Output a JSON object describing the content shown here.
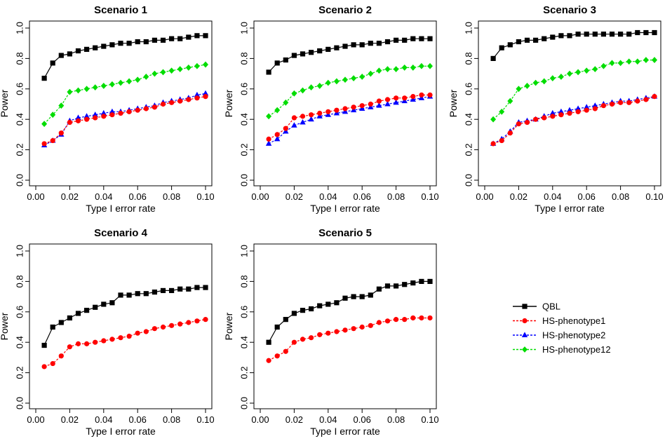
{
  "figure": {
    "xlabel": "Type I error rate",
    "ylabel": "Power",
    "xticks": [
      "0.00",
      "0.02",
      "0.04",
      "0.06",
      "0.08",
      "0.10"
    ],
    "yticks": [
      "0.0",
      "0.2",
      "0.4",
      "0.6",
      "0.8",
      "1.0"
    ]
  },
  "legend": [
    {
      "name": "QBL",
      "color": "#000000",
      "marker": "square"
    },
    {
      "name": "HS-phenotype1",
      "color": "#ff0000",
      "marker": "circle"
    },
    {
      "name": "HS-phenotype2",
      "color": "#0000ff",
      "marker": "triangle"
    },
    {
      "name": "HS-phenotype12",
      "color": "#00dd00",
      "marker": "diamond"
    }
  ],
  "chart_data": [
    {
      "type": "line",
      "title": "Scenario 1",
      "xlabel": "Type I error rate",
      "ylabel": "Power",
      "xlim": [
        0,
        0.1
      ],
      "ylim": [
        0,
        1
      ],
      "x": [
        0.005,
        0.01,
        0.015,
        0.02,
        0.025,
        0.03,
        0.035,
        0.04,
        0.045,
        0.05,
        0.055,
        0.06,
        0.065,
        0.07,
        0.075,
        0.08,
        0.085,
        0.09,
        0.095,
        0.1
      ],
      "series": [
        {
          "name": "QBL",
          "values": [
            0.67,
            0.77,
            0.82,
            0.83,
            0.85,
            0.86,
            0.87,
            0.88,
            0.89,
            0.9,
            0.9,
            0.91,
            0.91,
            0.92,
            0.92,
            0.93,
            0.93,
            0.94,
            0.95,
            0.95
          ]
        },
        {
          "name": "HS-phenotype1",
          "values": [
            0.24,
            0.26,
            0.31,
            0.38,
            0.39,
            0.4,
            0.41,
            0.42,
            0.43,
            0.44,
            0.45,
            0.46,
            0.47,
            0.48,
            0.5,
            0.51,
            0.52,
            0.53,
            0.54,
            0.55
          ]
        },
        {
          "name": "HS-phenotype2",
          "values": [
            0.23,
            0.26,
            0.3,
            0.39,
            0.41,
            0.42,
            0.43,
            0.44,
            0.45,
            0.45,
            0.46,
            0.47,
            0.48,
            0.49,
            0.51,
            0.52,
            0.53,
            0.54,
            0.56,
            0.57
          ]
        },
        {
          "name": "HS-phenotype12",
          "values": [
            0.37,
            0.43,
            0.49,
            0.58,
            0.59,
            0.6,
            0.61,
            0.62,
            0.63,
            0.64,
            0.65,
            0.66,
            0.68,
            0.7,
            0.71,
            0.72,
            0.73,
            0.74,
            0.75,
            0.76
          ]
        }
      ]
    },
    {
      "type": "line",
      "title": "Scenario 2",
      "xlabel": "Type I error rate",
      "ylabel": "Power",
      "xlim": [
        0,
        0.1
      ],
      "ylim": [
        0,
        1
      ],
      "x": [
        0.005,
        0.01,
        0.015,
        0.02,
        0.025,
        0.03,
        0.035,
        0.04,
        0.045,
        0.05,
        0.055,
        0.06,
        0.065,
        0.07,
        0.075,
        0.08,
        0.085,
        0.09,
        0.095,
        0.1
      ],
      "series": [
        {
          "name": "QBL",
          "values": [
            0.71,
            0.77,
            0.79,
            0.82,
            0.83,
            0.84,
            0.85,
            0.86,
            0.87,
            0.88,
            0.89,
            0.89,
            0.9,
            0.9,
            0.91,
            0.92,
            0.92,
            0.93,
            0.93,
            0.93
          ]
        },
        {
          "name": "HS-phenotype1",
          "values": [
            0.27,
            0.3,
            0.34,
            0.41,
            0.42,
            0.43,
            0.44,
            0.45,
            0.46,
            0.47,
            0.48,
            0.49,
            0.5,
            0.52,
            0.53,
            0.54,
            0.54,
            0.55,
            0.56,
            0.56
          ]
        },
        {
          "name": "HS-phenotype2",
          "values": [
            0.24,
            0.27,
            0.32,
            0.36,
            0.38,
            0.4,
            0.42,
            0.43,
            0.44,
            0.45,
            0.46,
            0.47,
            0.48,
            0.49,
            0.5,
            0.51,
            0.52,
            0.53,
            0.54,
            0.55
          ]
        },
        {
          "name": "HS-phenotype12",
          "values": [
            0.42,
            0.46,
            0.51,
            0.57,
            0.59,
            0.61,
            0.62,
            0.64,
            0.65,
            0.66,
            0.67,
            0.68,
            0.7,
            0.72,
            0.73,
            0.73,
            0.74,
            0.74,
            0.75,
            0.75
          ]
        }
      ]
    },
    {
      "type": "line",
      "title": "Scenario 3",
      "xlabel": "Type I error rate",
      "ylabel": "Power",
      "xlim": [
        0,
        0.1
      ],
      "ylim": [
        0,
        1
      ],
      "x": [
        0.005,
        0.01,
        0.015,
        0.02,
        0.025,
        0.03,
        0.035,
        0.04,
        0.045,
        0.05,
        0.055,
        0.06,
        0.065,
        0.07,
        0.075,
        0.08,
        0.085,
        0.09,
        0.095,
        0.1
      ],
      "series": [
        {
          "name": "QBL",
          "values": [
            0.8,
            0.87,
            0.89,
            0.91,
            0.92,
            0.92,
            0.93,
            0.94,
            0.95,
            0.95,
            0.96,
            0.96,
            0.96,
            0.96,
            0.96,
            0.96,
            0.96,
            0.97,
            0.97,
            0.97
          ]
        },
        {
          "name": "HS-phenotype1",
          "values": [
            0.24,
            0.26,
            0.31,
            0.37,
            0.38,
            0.4,
            0.41,
            0.42,
            0.43,
            0.44,
            0.45,
            0.46,
            0.47,
            0.49,
            0.5,
            0.51,
            0.51,
            0.52,
            0.53,
            0.55
          ]
        },
        {
          "name": "HS-phenotype2",
          "values": [
            0.24,
            0.27,
            0.32,
            0.38,
            0.39,
            0.4,
            0.42,
            0.44,
            0.45,
            0.46,
            0.47,
            0.48,
            0.49,
            0.5,
            0.51,
            0.52,
            0.52,
            0.53,
            0.54,
            0.55
          ]
        },
        {
          "name": "HS-phenotype12",
          "values": [
            0.4,
            0.45,
            0.52,
            0.6,
            0.62,
            0.64,
            0.65,
            0.67,
            0.68,
            0.7,
            0.71,
            0.72,
            0.73,
            0.75,
            0.77,
            0.77,
            0.78,
            0.78,
            0.79,
            0.79
          ]
        }
      ]
    },
    {
      "type": "line",
      "title": "Scenario 4",
      "xlabel": "Type I error rate",
      "ylabel": "Power",
      "xlim": [
        0,
        0.1
      ],
      "ylim": [
        0,
        1
      ],
      "x": [
        0.005,
        0.01,
        0.015,
        0.02,
        0.025,
        0.03,
        0.035,
        0.04,
        0.045,
        0.05,
        0.055,
        0.06,
        0.065,
        0.07,
        0.075,
        0.08,
        0.085,
        0.09,
        0.095,
        0.1
      ],
      "series": [
        {
          "name": "QBL",
          "values": [
            0.38,
            0.5,
            0.53,
            0.56,
            0.59,
            0.61,
            0.63,
            0.65,
            0.66,
            0.71,
            0.71,
            0.72,
            0.72,
            0.73,
            0.74,
            0.74,
            0.75,
            0.75,
            0.76,
            0.76
          ]
        },
        {
          "name": "HS-phenotype1",
          "values": [
            0.24,
            0.26,
            0.31,
            0.37,
            0.39,
            0.39,
            0.4,
            0.41,
            0.42,
            0.43,
            0.44,
            0.46,
            0.47,
            0.49,
            0.5,
            0.51,
            0.52,
            0.53,
            0.54,
            0.55
          ]
        }
      ]
    },
    {
      "type": "line",
      "title": "Scenario 5",
      "xlabel": "Type I error rate",
      "ylabel": "Power",
      "xlim": [
        0,
        0.1
      ],
      "ylim": [
        0,
        1
      ],
      "x": [
        0.005,
        0.01,
        0.015,
        0.02,
        0.025,
        0.03,
        0.035,
        0.04,
        0.045,
        0.05,
        0.055,
        0.06,
        0.065,
        0.07,
        0.075,
        0.08,
        0.085,
        0.09,
        0.095,
        0.1
      ],
      "series": [
        {
          "name": "QBL",
          "values": [
            0.4,
            0.5,
            0.55,
            0.59,
            0.61,
            0.62,
            0.64,
            0.65,
            0.66,
            0.69,
            0.7,
            0.7,
            0.71,
            0.75,
            0.77,
            0.77,
            0.78,
            0.79,
            0.8,
            0.8
          ]
        },
        {
          "name": "HS-phenotype1",
          "values": [
            0.28,
            0.31,
            0.34,
            0.4,
            0.42,
            0.43,
            0.45,
            0.46,
            0.47,
            0.48,
            0.49,
            0.5,
            0.51,
            0.53,
            0.54,
            0.55,
            0.55,
            0.56,
            0.56,
            0.56
          ]
        }
      ]
    }
  ]
}
